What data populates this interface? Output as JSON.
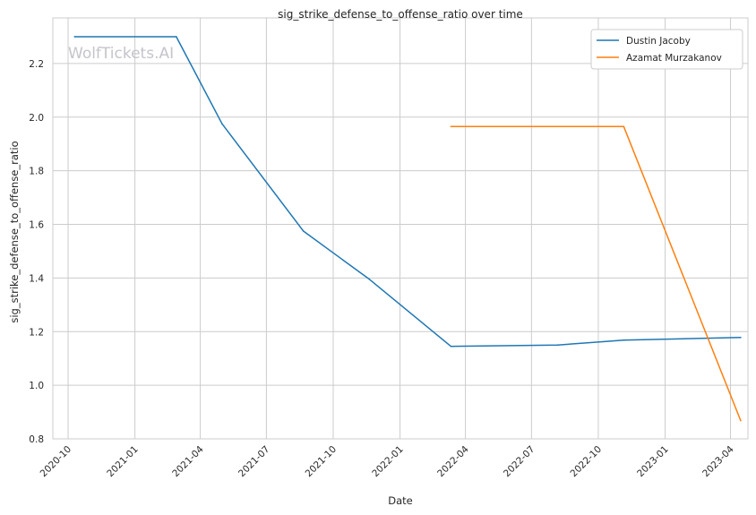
{
  "chart_data": {
    "type": "line",
    "title": "sig_strike_defense_to_offense_ratio over time",
    "xlabel": "Date",
    "ylabel": "sig_strike_defense_to_offense_ratio",
    "watermark": "WolfTickets.AI",
    "x_ticks": [
      "2020-10",
      "2021-01",
      "2021-04",
      "2021-07",
      "2021-10",
      "2022-01",
      "2022-04",
      "2022-07",
      "2022-10",
      "2023-01",
      "2023-04"
    ],
    "y_ticks": [
      "0.8",
      "1.0",
      "1.2",
      "1.4",
      "1.6",
      "1.8",
      "2.0",
      "2.2"
    ],
    "xlim": [
      "2020-09-10",
      "2023-04-25"
    ],
    "ylim": [
      0.8,
      2.37
    ],
    "grid": true,
    "legend_position": "top-right",
    "series": [
      {
        "name": "Dustin Jacoby",
        "color": "#1f77b4",
        "points": [
          {
            "x": "2020-10-10",
            "y": 2.3
          },
          {
            "x": "2021-02-27",
            "y": 2.3
          },
          {
            "x": "2021-05-01",
            "y": 1.975
          },
          {
            "x": "2021-08-21",
            "y": 1.575
          },
          {
            "x": "2021-11-20",
            "y": 1.395
          },
          {
            "x": "2022-03-12",
            "y": 1.145
          },
          {
            "x": "2022-08-06",
            "y": 1.15
          },
          {
            "x": "2022-11-05",
            "y": 1.168
          },
          {
            "x": "2023-04-15",
            "y": 1.178
          }
        ]
      },
      {
        "name": "Azamat Murzakanov",
        "color": "#ff7f0e",
        "points": [
          {
            "x": "2022-03-12",
            "y": 1.965
          },
          {
            "x": "2022-11-05",
            "y": 1.965
          },
          {
            "x": "2023-04-15",
            "y": 0.868
          }
        ]
      }
    ]
  }
}
